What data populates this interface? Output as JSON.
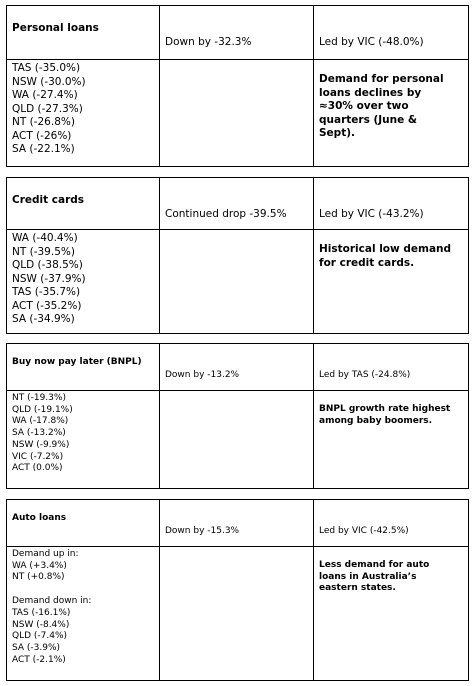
{
  "sections": [
    {
      "title": "Personal loans",
      "summary": "Down by -32.3%",
      "leader": "Led by VIC (-48.0%)",
      "lines": [
        "TAS (-35.0%)",
        "NSW (-30.0%)",
        "WA (-27.4%)",
        "QLD (-27.3%)",
        "NT (-26.8%)",
        "ACT (-26%)",
        "SA (-22.1%)"
      ],
      "note": "Demand for personal loans declines by ≈30% over two quarters (June & Sept)."
    },
    {
      "title": "Credit cards",
      "summary": "Continued drop -39.5%",
      "leader": "Led by VIC (-43.2%)",
      "lines": [
        "WA (-40.4%)",
        "NT (-39.5%)",
        "QLD (-38.5%)",
        "NSW (-37.9%)",
        "TAS (-35.7%)",
        "ACT (-35.2%)",
        "SA (-34.9%)"
      ],
      "note": "Historical low demand for credit cards."
    },
    {
      "title": "Buy now pay later (BNPL)",
      "summary": "Down by -13.2%",
      "leader": "Led by TAS (-24.8%)",
      "lines": [
        "NT (-19.3%)",
        "QLD (-19.1%)",
        "WA (-17.8%)",
        "SA (-13.2%)",
        "NSW (-9.9%)",
        "VIC (-7.2%)",
        "ACT (0.0%)"
      ],
      "note": "BNPL growth rate highest among baby boomers."
    },
    {
      "title": "Auto loans",
      "summary": "Down by -15.3%",
      "leader": "Led by VIC (-42.5%)",
      "groups": [
        {
          "label": "Demand up in:",
          "lines": [
            "WA (+3.4%)",
            "NT (+0.8%)"
          ]
        },
        {
          "label": "Demand down in:",
          "lines": [
            "TAS (-16.1%)",
            "NSW (-8.4%)",
            "QLD (-7.4%)",
            "SA (-3.9%)",
            "ACT (-2.1%)"
          ]
        }
      ],
      "note": "Less demand for auto loans in Australia’s eastern states."
    }
  ]
}
